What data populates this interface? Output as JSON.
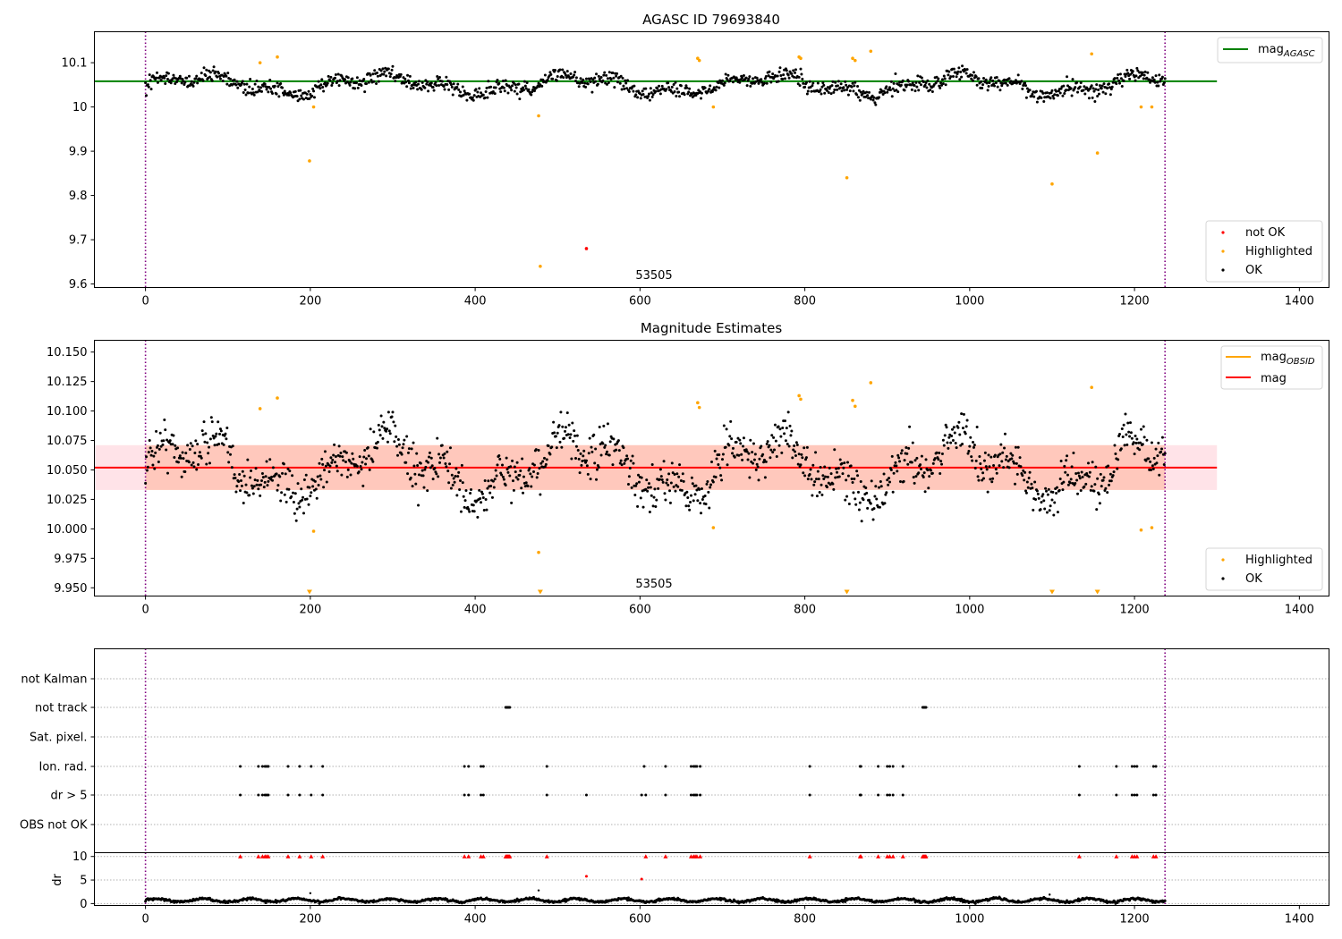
{
  "colors": {
    "ok": "#000000",
    "highlighted": "#ffa500",
    "not_ok": "#ff0000",
    "agasc_line": "#008000",
    "mag_line": "#ff0000",
    "mag_obsid_line": "#ffa500",
    "band_outer": "#ffc0cb",
    "band_inner": "#ffa07a",
    "obs_boundary": "#800080"
  },
  "chart_data": [
    {
      "type": "scatter",
      "title": "AGASC ID 79693840",
      "xlim": [
        -62,
        1436
      ],
      "ylim": [
        9.592,
        10.17
      ],
      "xticks": [
        0,
        200,
        400,
        600,
        800,
        1000,
        1200,
        1400
      ],
      "yticks": [
        9.6,
        9.7,
        9.8,
        9.9,
        10.0,
        10.1
      ],
      "grid": false,
      "obs_boundaries_x": [
        0,
        1237
      ],
      "obsid_label": "53505",
      "hlines": [
        {
          "name": "mag",
          "sub": "AGASC",
          "y": 10.058,
          "x_end": 1300
        }
      ],
      "legend_top": [
        "mag_AGASC"
      ],
      "legend_bottom": [
        "not OK",
        "Highlighted",
        "OK"
      ],
      "highlighted_points": [
        [
          139,
          10.1
        ],
        [
          160,
          10.113
        ],
        [
          199,
          9.878
        ],
        [
          204,
          10.0
        ],
        [
          477,
          9.98
        ],
        [
          479,
          9.64
        ],
        [
          670,
          10.11
        ],
        [
          672,
          10.105
        ],
        [
          689,
          10.0
        ],
        [
          793,
          10.113
        ],
        [
          795,
          10.11
        ],
        [
          851,
          9.84
        ],
        [
          858,
          10.11
        ],
        [
          861,
          10.105
        ],
        [
          880,
          10.126
        ],
        [
          1100,
          9.826
        ],
        [
          1148,
          10.12
        ],
        [
          1155,
          9.896
        ],
        [
          1208,
          10.0
        ],
        [
          1221,
          10.0
        ]
      ],
      "not_ok_points": [
        [
          535,
          9.68
        ]
      ]
    },
    {
      "type": "scatter",
      "title": "Magnitude Estimates",
      "xlim": [
        -62,
        1436
      ],
      "ylim": [
        9.943,
        10.16
      ],
      "xticks": [
        0,
        200,
        400,
        600,
        800,
        1000,
        1200,
        1400
      ],
      "yticks": [
        9.95,
        9.975,
        10.0,
        10.025,
        10.05,
        10.075,
        10.1,
        10.125,
        10.15
      ],
      "ytick_labels": [
        "9.950",
        "9.975",
        "10.000",
        "10.025",
        "10.050",
        "10.075",
        "10.100",
        "10.125",
        "10.150"
      ],
      "grid": false,
      "obs_boundaries_x": [
        0,
        1237
      ],
      "obsid_label": "53505",
      "bands": [
        {
          "y_min": 10.033,
          "y_max": 10.071,
          "x_end": 1300,
          "color": "band_outer"
        },
        {
          "y_min": 10.033,
          "y_max": 10.071,
          "x_end": 1300,
          "color": "band_inner"
        }
      ],
      "hlines": [
        {
          "name": "mag",
          "sub": "OBSID",
          "y": 10.052,
          "x_end": 1237,
          "color": "mag_obsid_line"
        },
        {
          "name": "mag",
          "y": 10.052,
          "x_end": 1300,
          "color": "mag_line"
        }
      ],
      "legend_top": [
        "mag_OBSID",
        "mag"
      ],
      "legend_bottom": [
        "Highlighted",
        "OK"
      ],
      "highlighted_points": [
        [
          139,
          10.102
        ],
        [
          160,
          10.111
        ],
        [
          204,
          9.998
        ],
        [
          477,
          9.98
        ],
        [
          670,
          10.107
        ],
        [
          672,
          10.103
        ],
        [
          689,
          10.001
        ],
        [
          793,
          10.113
        ],
        [
          795,
          10.11
        ],
        [
          858,
          10.109
        ],
        [
          861,
          10.104
        ],
        [
          880,
          10.124
        ],
        [
          1148,
          10.12
        ],
        [
          1208,
          9.999
        ],
        [
          1221,
          10.001
        ]
      ],
      "offscale_markers_x": [
        199,
        479,
        851,
        1100,
        1155
      ]
    },
    {
      "type": "scatter",
      "title": "",
      "xlim": [
        -62,
        1436
      ],
      "xticks": [
        0,
        200,
        400,
        600,
        800,
        1000,
        1200,
        1400
      ],
      "obs_boundaries_x": [
        0,
        1237
      ],
      "flag_rows": [
        "not Kalman",
        "not track",
        "Sat. pixel.",
        "Ion. rad.",
        "dr > 5",
        "OBS not OK"
      ],
      "flags": {
        "not Kalman": [],
        "not track": [
          437,
          438,
          439,
          440,
          441,
          442,
          943,
          944,
          945,
          946,
          947
        ],
        "Sat. pixel.": [],
        "Ion. rad.": [
          115,
          137,
          142,
          145,
          147,
          149,
          173,
          187,
          201,
          215,
          387,
          392,
          407,
          410,
          487,
          605,
          631,
          662,
          665,
          667,
          669,
          673,
          806,
          867,
          868,
          889,
          900,
          903,
          907,
          919,
          1133,
          1178,
          1197,
          1200,
          1203,
          1223,
          1226
        ],
        "dr > 5": [
          115,
          137,
          142,
          145,
          147,
          149,
          173,
          187,
          201,
          215,
          387,
          392,
          407,
          410,
          487,
          535,
          602,
          607,
          631,
          662,
          665,
          667,
          669,
          673,
          806,
          867,
          868,
          889,
          900,
          903,
          907,
          919,
          1133,
          1178,
          1197,
          1200,
          1203,
          1223,
          1226
        ],
        "OBS not OK": []
      }
    },
    {
      "type": "scatter",
      "title": "",
      "ylabel": "dr",
      "xlim": [
        -62,
        1436
      ],
      "ylim": [
        -0.4,
        10.8
      ],
      "xticks": [
        0,
        200,
        400,
        600,
        800,
        1000,
        1200,
        1400
      ],
      "yticks": [
        0,
        5,
        10
      ],
      "grid": true,
      "obs_boundaries_x": [
        0,
        1237
      ],
      "capped_at_10_x": [
        115,
        137,
        142,
        145,
        147,
        149,
        173,
        187,
        201,
        215,
        387,
        392,
        407,
        410,
        437,
        438,
        439,
        440,
        441,
        442,
        487,
        607,
        631,
        662,
        665,
        667,
        669,
        673,
        806,
        867,
        868,
        889,
        900,
        903,
        907,
        919,
        943,
        944,
        945,
        946,
        947,
        1133,
        1178,
        1197,
        1200,
        1203,
        1223,
        1226
      ],
      "red_points": [
        [
          535,
          5.8
        ],
        [
          602,
          5.2
        ]
      ],
      "other_points": [
        [
          477,
          2.8
        ],
        [
          200,
          2.2
        ],
        [
          1097,
          1.9
        ]
      ]
    }
  ]
}
